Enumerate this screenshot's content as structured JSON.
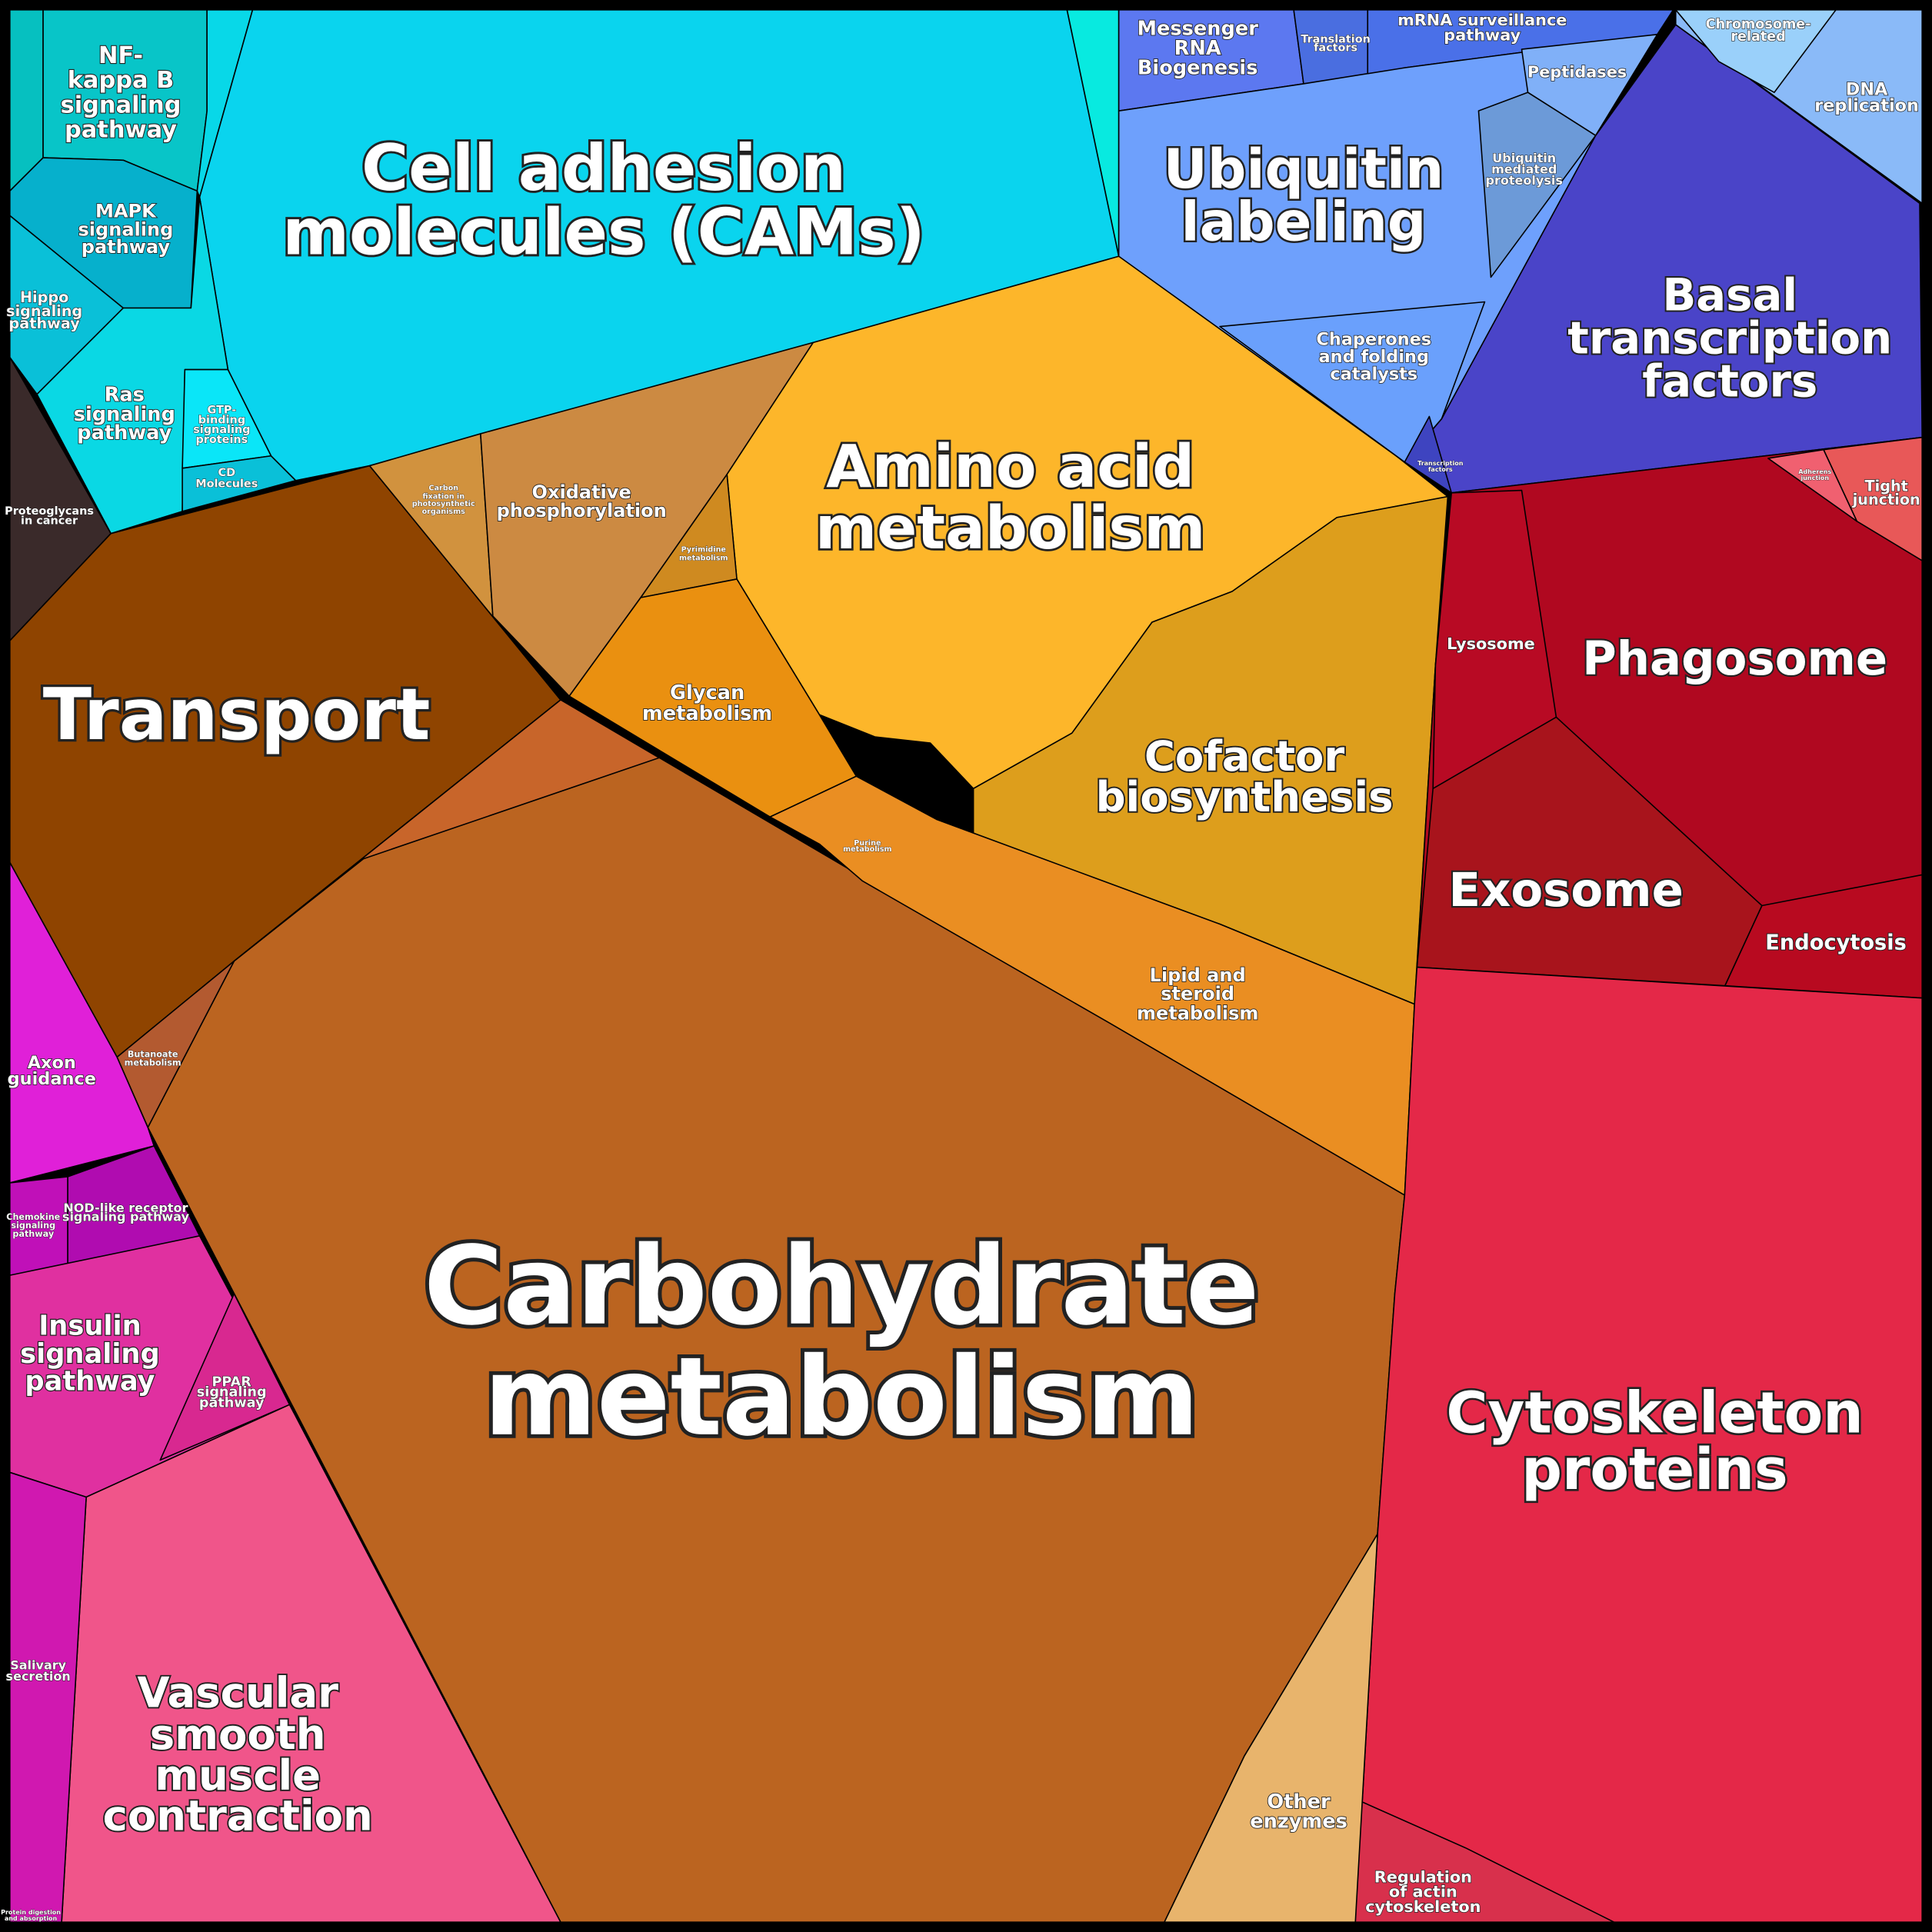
{
  "cells": [
    {
      "lines": [
        "Cell adhesion",
        "molecules (CAMs)"
      ]
    },
    {
      "lines": [
        "NF-",
        "kappa B",
        "signaling",
        "pathway"
      ]
    },
    {
      "lines": [
        "MAPK",
        "signaling",
        "pathway"
      ]
    },
    {
      "lines": [
        "Hippo",
        "signaling",
        "pathway"
      ]
    },
    {
      "lines": [
        "Ras",
        "signaling",
        "pathway"
      ]
    },
    {
      "lines": [
        "GTP-",
        "binding",
        "signaling",
        "proteins"
      ]
    },
    {
      "lines": [
        "CD",
        "Molecules"
      ]
    },
    {
      "lines": [
        "Proteoglycans",
        "in cancer"
      ]
    },
    {
      "lines": [
        "Transport"
      ]
    },
    {
      "lines": [
        "Carbohydrate",
        "metabolism"
      ]
    },
    {
      "lines": [
        "Butanoate",
        "metabolism"
      ]
    },
    {
      "lines": [
        "Oxidative",
        "phosphorylation"
      ]
    },
    {
      "lines": [
        "Carbon",
        "fixation in",
        "photosynthetic",
        "organisms"
      ]
    },
    {
      "lines": [
        "Amino acid",
        "metabolism"
      ]
    },
    {
      "lines": [
        "Pyrimidine",
        "metabolism"
      ]
    },
    {
      "lines": [
        "Glycan",
        "metabolism"
      ]
    },
    {
      "lines": [
        "Purine",
        "metabolism"
      ]
    },
    {
      "lines": [
        "Cofactor",
        "biosynthesis"
      ]
    },
    {
      "lines": [
        "Lipid and",
        "steroid",
        "metabolism"
      ]
    },
    {
      "lines": [
        "Messenger",
        "RNA",
        "Biogenesis"
      ]
    },
    {
      "lines": [
        "Translation",
        "factors"
      ]
    },
    {
      "lines": [
        "mRNA surveillance",
        "pathway"
      ]
    },
    {
      "lines": [
        "Ubiquitin",
        "labeling"
      ]
    },
    {
      "lines": [
        "Peptidases"
      ]
    },
    {
      "lines": [
        "Ubiquitin",
        "mediated",
        "proteolysis"
      ]
    },
    {
      "lines": [
        "Chaperones",
        "and folding",
        "catalysts"
      ]
    },
    {
      "lines": [
        "Transcription",
        "factors"
      ]
    },
    {
      "lines": [
        "Chromosome-",
        "related"
      ]
    },
    {
      "lines": [
        "DNA",
        "replication"
      ]
    },
    {
      "lines": [
        "Basal",
        "transcription",
        "factors"
      ]
    },
    {
      "lines": [
        "Lysosome"
      ]
    },
    {
      "lines": [
        "Phagosome"
      ]
    },
    {
      "lines": [
        "Exosome"
      ]
    },
    {
      "lines": [
        "Endocytosis"
      ]
    },
    {
      "lines": [
        "Tight",
        "junction"
      ]
    },
    {
      "lines": [
        "Adherens",
        "junction"
      ]
    },
    {
      "lines": [
        "Cytoskeleton",
        "proteins"
      ]
    },
    {
      "lines": [
        "Regulation",
        "of actin",
        "cytoskeleton"
      ]
    },
    {
      "lines": [
        "Other",
        "enzymes"
      ]
    },
    {
      "lines": [
        "Axon",
        "guidance"
      ]
    },
    {
      "lines": [
        "Chemokine",
        "signaling",
        "pathway"
      ]
    },
    {
      "lines": [
        "NOD-like receptor",
        "signaling pathway"
      ]
    },
    {
      "lines": [
        "Insulin",
        "signaling",
        "pathway"
      ]
    },
    {
      "lines": [
        "PPAR",
        "signaling",
        "pathway"
      ]
    },
    {
      "lines": [
        "Salivary",
        "secretion"
      ]
    },
    {
      "lines": [
        "Vascular",
        "smooth",
        "muscle",
        "contraction"
      ]
    },
    {
      "lines": [
        "Protein digestion",
        "and absorption"
      ]
    }
  ]
}
